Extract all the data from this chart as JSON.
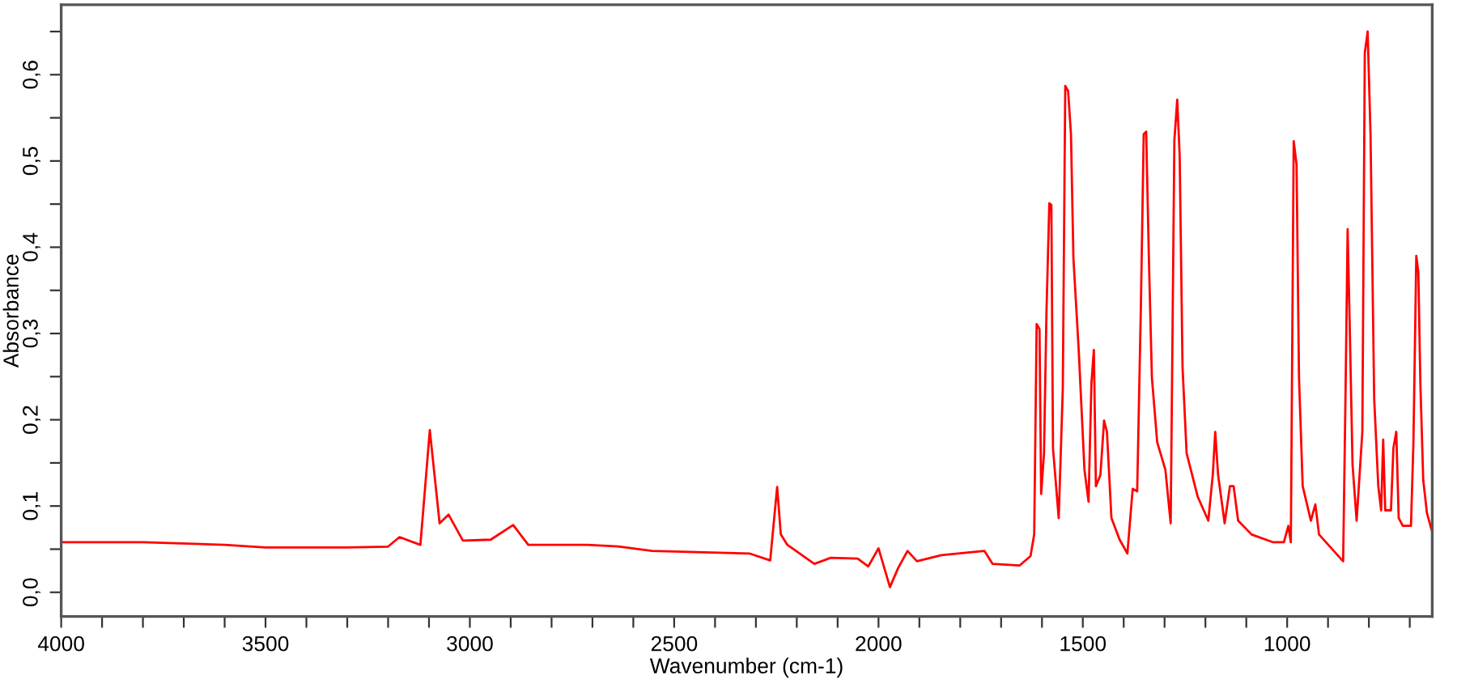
{
  "chart_data": {
    "type": "line",
    "xlabel": "Wavenumber (cm-1)",
    "ylabel": "Absorbance",
    "xlim": [
      4000,
      645
    ],
    "ylim": [
      -0.028,
      0.681
    ],
    "xticks": [
      {
        "value": 4000,
        "label": "4000"
      },
      {
        "value": 3900,
        "label": null
      },
      {
        "value": 3800,
        "label": null
      },
      {
        "value": 3700,
        "label": null
      },
      {
        "value": 3600,
        "label": null
      },
      {
        "value": 3500,
        "label": "3500"
      },
      {
        "value": 3400,
        "label": null
      },
      {
        "value": 3300,
        "label": null
      },
      {
        "value": 3200,
        "label": null
      },
      {
        "value": 3100,
        "label": null
      },
      {
        "value": 3000,
        "label": "3000"
      },
      {
        "value": 2900,
        "label": null
      },
      {
        "value": 2800,
        "label": null
      },
      {
        "value": 2700,
        "label": null
      },
      {
        "value": 2600,
        "label": null
      },
      {
        "value": 2500,
        "label": "2500"
      },
      {
        "value": 2400,
        "label": null
      },
      {
        "value": 2300,
        "label": null
      },
      {
        "value": 2200,
        "label": null
      },
      {
        "value": 2100,
        "label": null
      },
      {
        "value": 2000,
        "label": "2000"
      },
      {
        "value": 1900,
        "label": null
      },
      {
        "value": 1800,
        "label": null
      },
      {
        "value": 1700,
        "label": null
      },
      {
        "value": 1600,
        "label": null
      },
      {
        "value": 1500,
        "label": "1500"
      },
      {
        "value": 1400,
        "label": null
      },
      {
        "value": 1300,
        "label": null
      },
      {
        "value": 1200,
        "label": null
      },
      {
        "value": 1100,
        "label": null
      },
      {
        "value": 1000,
        "label": "1000"
      },
      {
        "value": 900,
        "label": null
      },
      {
        "value": 800,
        "label": null
      },
      {
        "value": 700,
        "label": null
      }
    ],
    "yticks": [
      {
        "value": 0.0,
        "label": "0,0"
      },
      {
        "value": 0.05,
        "label": null
      },
      {
        "value": 0.1,
        "label": "0,1"
      },
      {
        "value": 0.15,
        "label": null
      },
      {
        "value": 0.2,
        "label": "0,2"
      },
      {
        "value": 0.25,
        "label": null
      },
      {
        "value": 0.3,
        "label": "0,3"
      },
      {
        "value": 0.35,
        "label": null
      },
      {
        "value": 0.4,
        "label": "0,4"
      },
      {
        "value": 0.45,
        "label": null
      },
      {
        "value": 0.5,
        "label": "0,5"
      },
      {
        "value": 0.55,
        "label": null
      },
      {
        "value": 0.6,
        "label": "0,6"
      },
      {
        "value": 0.65,
        "label": null
      }
    ],
    "grid": false,
    "legend": false,
    "marker": "none",
    "line_style": "solid",
    "series": [
      {
        "color": "#ff0000",
        "x": [
          4000,
          3800,
          3600,
          3500,
          3300,
          3200,
          3172,
          3121,
          3098,
          3074,
          3052,
          3017,
          2949,
          2894,
          2857,
          2713,
          2633,
          2554,
          2316,
          2265,
          2248,
          2239,
          2223,
          2157,
          2117,
          2051,
          2025,
          2000,
          1972,
          1952,
          1929,
          1906,
          1846,
          1741,
          1721,
          1655,
          1628,
          1619,
          1613,
          1606,
          1602,
          1595,
          1589,
          1582,
          1577,
          1573,
          1559,
          1549,
          1543,
          1536,
          1529,
          1523,
          1510,
          1496,
          1486,
          1479,
          1473,
          1468,
          1457,
          1448,
          1441,
          1430,
          1410,
          1391,
          1378,
          1367,
          1358,
          1351,
          1345,
          1338,
          1331,
          1318,
          1298,
          1285,
          1276,
          1269,
          1263,
          1256,
          1246,
          1219,
          1193,
          1182,
          1176,
          1169,
          1153,
          1140,
          1131,
          1120,
          1087,
          1034,
          1008,
          997,
          991,
          984,
          977,
          971,
          962,
          942,
          931,
          922,
          869,
          863,
          857,
          852,
          847,
          840,
          830,
          816,
          810,
          803,
          796,
          787,
          777,
          770,
          765,
          760,
          746,
          740,
          733,
          727,
          717,
          697,
          691,
          684,
          679,
          674,
          667,
          658,
          647
        ],
        "values": [
          0.058,
          0.058,
          0.055,
          0.052,
          0.052,
          0.053,
          0.064,
          0.055,
          0.188,
          0.08,
          0.09,
          0.06,
          0.061,
          0.078,
          0.055,
          0.055,
          0.053,
          0.048,
          0.045,
          0.037,
          0.122,
          0.067,
          0.055,
          0.033,
          0.04,
          0.039,
          0.03,
          0.051,
          0.006,
          0.028,
          0.048,
          0.036,
          0.043,
          0.048,
          0.033,
          0.031,
          0.042,
          0.067,
          0.311,
          0.305,
          0.114,
          0.161,
          0.324,
          0.451,
          0.449,
          0.167,
          0.086,
          0.236,
          0.587,
          0.581,
          0.531,
          0.387,
          0.28,
          0.142,
          0.105,
          0.242,
          0.281,
          0.123,
          0.136,
          0.199,
          0.186,
          0.086,
          0.061,
          0.045,
          0.12,
          0.117,
          0.33,
          0.531,
          0.534,
          0.38,
          0.249,
          0.174,
          0.142,
          0.08,
          0.524,
          0.571,
          0.506,
          0.261,
          0.161,
          0.111,
          0.083,
          0.136,
          0.186,
          0.136,
          0.08,
          0.123,
          0.123,
          0.083,
          0.067,
          0.058,
          0.058,
          0.077,
          0.058,
          0.523,
          0.496,
          0.249,
          0.123,
          0.083,
          0.102,
          0.067,
          0.039,
          0.036,
          0.236,
          0.421,
          0.311,
          0.148,
          0.083,
          0.186,
          0.625,
          0.65,
          0.531,
          0.224,
          0.123,
          0.095,
          0.177,
          0.095,
          0.095,
          0.167,
          0.186,
          0.086,
          0.077,
          0.077,
          0.174,
          0.39,
          0.371,
          0.242,
          0.13,
          0.092,
          0.073
        ]
      }
    ]
  }
}
